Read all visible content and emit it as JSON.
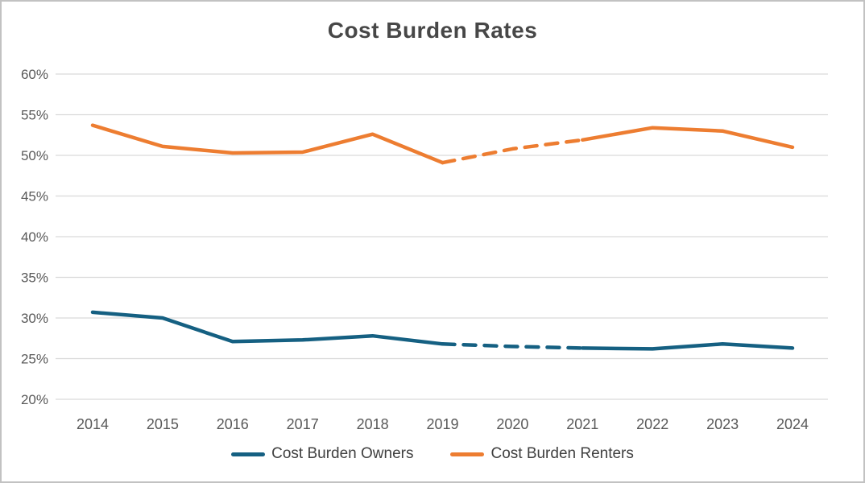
{
  "chart_data": {
    "type": "line",
    "title": "Cost Burden Rates",
    "x": [
      "2014",
      "2015",
      "2016",
      "2017",
      "2018",
      "2019",
      "2020",
      "2021",
      "2022",
      "2023",
      "2024"
    ],
    "series": [
      {
        "name": "Cost Burden Owners",
        "color": "#156082",
        "values": [
          30.7,
          30.0,
          27.1,
          27.3,
          27.8,
          26.8,
          26.5,
          26.3,
          26.2,
          26.8,
          26.3
        ]
      },
      {
        "name": "Cost Burden Renters",
        "color": "#ED7D31",
        "values": [
          53.7,
          51.1,
          50.3,
          50.4,
          52.6,
          49.1,
          50.8,
          51.9,
          53.4,
          53.0,
          51.0
        ]
      }
    ],
    "dashed_segment": {
      "from": "2019",
      "to": "2021"
    },
    "ylim": [
      20,
      60
    ],
    "ytick_step": 5,
    "ytick_labels": [
      "20%",
      "25%",
      "30%",
      "35%",
      "40%",
      "45%",
      "50%",
      "55%",
      "60%"
    ],
    "xlabel": "",
    "ylabel": "",
    "grid": "horizontal",
    "gridline_color": "#D9D9D9",
    "tick_label_color": "#595959",
    "legend_position": "bottom"
  }
}
